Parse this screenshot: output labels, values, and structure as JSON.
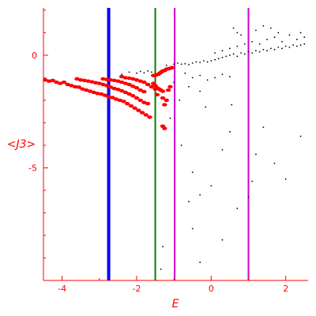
{
  "chart_data": {
    "type": "scatter",
    "title": "",
    "xlabel": "E",
    "ylabel": "<J3>",
    "xlim": [
      -4.5,
      2.6
    ],
    "ylim": [
      -10,
      2.1
    ],
    "x_ticks": [
      -4,
      -2,
      0,
      2
    ],
    "x_tick_labels": [
      "-4",
      "-2",
      "0",
      "2"
    ],
    "y_ticks": [
      0,
      -5
    ],
    "y_tick_labels": [
      "0",
      "-5"
    ],
    "grid": false,
    "colors": {
      "axes": "#ff0000",
      "red_points": "#ff0000",
      "black_points": "#000000"
    },
    "vertical_lines": [
      {
        "x": -2.75,
        "color": "#0000ff",
        "width": "thick"
      },
      {
        "x": -1.5,
        "color": "#008000",
        "width": "medium"
      },
      {
        "x": -0.98,
        "color": "#cc00cc",
        "width": "medium"
      },
      {
        "x": 1.0,
        "color": "#cc00cc",
        "width": "medium"
      }
    ],
    "series": [
      {
        "color": "#ff0000",
        "size": "large",
        "points": [
          [
            -4.45,
            -1.1
          ],
          [
            -4.35,
            -1.15
          ],
          [
            -4.25,
            -1.12
          ],
          [
            -4.15,
            -1.2
          ],
          [
            -4.05,
            -1.25
          ],
          [
            -3.95,
            -1.2
          ],
          [
            -3.85,
            -1.3
          ],
          [
            -3.75,
            -1.35
          ],
          [
            -3.65,
            -1.4
          ],
          [
            -3.55,
            -1.42
          ],
          [
            -3.45,
            -1.5
          ],
          [
            -3.35,
            -1.55
          ],
          [
            -3.25,
            -1.6
          ],
          [
            -3.15,
            -1.65
          ],
          [
            -3.05,
            -1.7
          ],
          [
            -2.95,
            -1.72
          ],
          [
            -2.85,
            -1.78
          ],
          [
            -2.75,
            -1.85
          ],
          [
            -2.65,
            -1.88
          ],
          [
            -2.55,
            -1.95
          ],
          [
            -2.45,
            -2.0
          ],
          [
            -2.35,
            -2.05
          ],
          [
            -2.25,
            -2.15
          ],
          [
            -2.15,
            -2.25
          ],
          [
            -2.05,
            -2.35
          ],
          [
            -1.95,
            -2.45
          ],
          [
            -1.85,
            -2.55
          ],
          [
            -1.75,
            -2.65
          ],
          [
            -1.65,
            -2.75
          ],
          [
            -3.6,
            -1.05
          ],
          [
            -3.5,
            -1.1
          ],
          [
            -3.4,
            -1.12
          ],
          [
            -3.3,
            -1.15
          ],
          [
            -3.2,
            -1.18
          ],
          [
            -3.1,
            -1.22
          ],
          [
            -3.0,
            -1.25
          ],
          [
            -2.9,
            -1.3
          ],
          [
            -2.8,
            -1.35
          ],
          [
            -2.7,
            -1.42
          ],
          [
            -2.6,
            -1.48
          ],
          [
            -2.5,
            -1.52
          ],
          [
            -2.4,
            -1.58
          ],
          [
            -2.3,
            -1.65
          ],
          [
            -2.2,
            -1.72
          ],
          [
            -2.1,
            -1.8
          ],
          [
            -2.0,
            -1.9
          ],
          [
            -1.9,
            -2.0
          ],
          [
            -1.8,
            -2.1
          ],
          [
            -1.7,
            -2.15
          ],
          [
            -2.9,
            -1.05
          ],
          [
            -2.8,
            -1.08
          ],
          [
            -2.7,
            -1.1
          ],
          [
            -2.6,
            -1.12
          ],
          [
            -2.5,
            -1.15
          ],
          [
            -2.4,
            -1.2
          ],
          [
            -2.3,
            -1.25
          ],
          [
            -2.2,
            -1.3
          ],
          [
            -2.1,
            -1.38
          ],
          [
            -2.0,
            -1.45
          ],
          [
            -1.9,
            -1.55
          ],
          [
            -1.8,
            -1.62
          ],
          [
            -2.4,
            -0.95
          ],
          [
            -2.3,
            -1.0
          ],
          [
            -2.2,
            -1.02
          ],
          [
            -2.1,
            -1.05
          ],
          [
            -2.0,
            -1.1
          ],
          [
            -1.9,
            -1.15
          ],
          [
            -1.8,
            -1.2
          ],
          [
            -1.7,
            -1.3
          ],
          [
            -1.6,
            -1.4
          ],
          [
            -1.5,
            -1.5
          ],
          [
            -1.55,
            -0.9
          ],
          [
            -1.48,
            -0.88
          ],
          [
            -1.42,
            -0.85
          ],
          [
            -1.38,
            -0.8
          ],
          [
            -1.34,
            -0.75
          ],
          [
            -1.3,
            -0.7
          ],
          [
            -1.25,
            -0.68
          ],
          [
            -1.2,
            -0.62
          ],
          [
            -1.15,
            -0.6
          ],
          [
            -1.1,
            -0.58
          ],
          [
            -1.05,
            -0.55
          ],
          [
            -1.55,
            -1.25
          ],
          [
            -1.5,
            -1.35
          ],
          [
            -1.45,
            -1.45
          ],
          [
            -1.4,
            -1.5
          ],
          [
            -1.35,
            -1.55
          ],
          [
            -1.3,
            -1.6
          ],
          [
            -1.2,
            -2.0
          ],
          [
            -1.25,
            -2.2
          ],
          [
            -1.3,
            -1.9
          ],
          [
            -1.15,
            -1.55
          ],
          [
            -1.1,
            -1.4
          ],
          [
            -1.25,
            -3.25
          ],
          [
            -1.3,
            -3.15
          ],
          [
            -1.45,
            -1.75
          ]
        ]
      },
      {
        "color": "#000000",
        "size": "small",
        "points": [
          [
            -2.4,
            -0.85
          ],
          [
            -2.2,
            -0.75
          ],
          [
            -2.0,
            -0.8
          ],
          [
            -1.9,
            -0.72
          ],
          [
            -1.8,
            -0.78
          ],
          [
            -1.7,
            -0.7
          ],
          [
            -1.6,
            -0.75
          ],
          [
            -1.2,
            -0.45
          ],
          [
            -1.0,
            -0.4
          ],
          [
            -0.9,
            -0.35
          ],
          [
            -0.8,
            -0.4
          ],
          [
            -0.7,
            -0.38
          ],
          [
            -0.6,
            -0.42
          ],
          [
            -0.5,
            -0.35
          ],
          [
            -0.4,
            -0.3
          ],
          [
            -0.3,
            -0.32
          ],
          [
            -0.2,
            -0.25
          ],
          [
            -0.1,
            -0.3
          ],
          [
            0.0,
            -0.25
          ],
          [
            0.1,
            -0.2
          ],
          [
            0.2,
            -0.15
          ],
          [
            0.3,
            -0.1
          ],
          [
            0.4,
            -0.05
          ],
          [
            0.5,
            0.0
          ],
          [
            0.6,
            0.05
          ],
          [
            0.7,
            -0.05
          ],
          [
            0.8,
            0.1
          ],
          [
            0.9,
            0.05
          ],
          [
            1.0,
            0.15
          ],
          [
            1.1,
            0.1
          ],
          [
            1.2,
            0.2
          ],
          [
            1.3,
            0.15
          ],
          [
            1.4,
            0.25
          ],
          [
            1.5,
            0.2
          ],
          [
            1.6,
            0.3
          ],
          [
            1.7,
            0.25
          ],
          [
            1.8,
            0.35
          ],
          [
            1.9,
            0.3
          ],
          [
            2.0,
            0.4
          ],
          [
            2.1,
            0.35
          ],
          [
            2.2,
            0.45
          ],
          [
            2.3,
            0.4
          ],
          [
            2.4,
            0.45
          ],
          [
            2.5,
            0.5
          ],
          [
            0.1,
            0.1
          ],
          [
            0.3,
            0.2
          ],
          [
            0.5,
            0.3
          ],
          [
            0.7,
            0.4
          ],
          [
            0.9,
            0.5
          ],
          [
            1.1,
            0.6
          ],
          [
            1.3,
            0.5
          ],
          [
            1.5,
            0.7
          ],
          [
            1.7,
            0.8
          ],
          [
            1.9,
            0.6
          ],
          [
            2.1,
            0.9
          ],
          [
            2.3,
            0.7
          ],
          [
            2.5,
            0.8
          ],
          [
            0.6,
            1.2
          ],
          [
            0.7,
            1.0
          ],
          [
            0.8,
            0.9
          ],
          [
            1.2,
            1.1
          ],
          [
            1.4,
            1.3
          ],
          [
            1.6,
            1.2
          ],
          [
            1.8,
            1.0
          ],
          [
            2.4,
            1.0
          ],
          [
            -0.7,
            -0.8
          ],
          [
            -0.5,
            -1.0
          ],
          [
            -0.3,
            -0.9
          ],
          [
            -0.1,
            -1.1
          ],
          [
            0.1,
            -1.0
          ],
          [
            0.3,
            -0.85
          ],
          [
            0.5,
            -0.95
          ],
          [
            -1.0,
            -1.2
          ],
          [
            -0.6,
            -1.4
          ],
          [
            -0.3,
            -1.6
          ],
          [
            -0.85,
            -2.0
          ],
          [
            -0.15,
            -2.3
          ],
          [
            0.55,
            -2.2
          ],
          [
            -1.1,
            -2.8
          ],
          [
            0.5,
            -3.4
          ],
          [
            1.4,
            -3.2
          ],
          [
            -0.8,
            -4.0
          ],
          [
            0.3,
            -4.2
          ],
          [
            1.2,
            -4.4
          ],
          [
            2.4,
            -3.6
          ],
          [
            1.7,
            -4.8
          ],
          [
            -0.5,
            -5.2
          ],
          [
            0.0,
            -5.8
          ],
          [
            1.1,
            -5.6
          ],
          [
            2.0,
            -5.5
          ],
          [
            -0.6,
            -6.5
          ],
          [
            -0.3,
            -6.2
          ],
          [
            0.7,
            -6.8
          ],
          [
            1.0,
            -6.3
          ],
          [
            -0.5,
            -7.7
          ],
          [
            0.3,
            -8.2
          ],
          [
            -1.3,
            -8.5
          ],
          [
            -0.3,
            -9.2
          ],
          [
            -1.35,
            -9.5
          ]
        ]
      }
    ]
  }
}
